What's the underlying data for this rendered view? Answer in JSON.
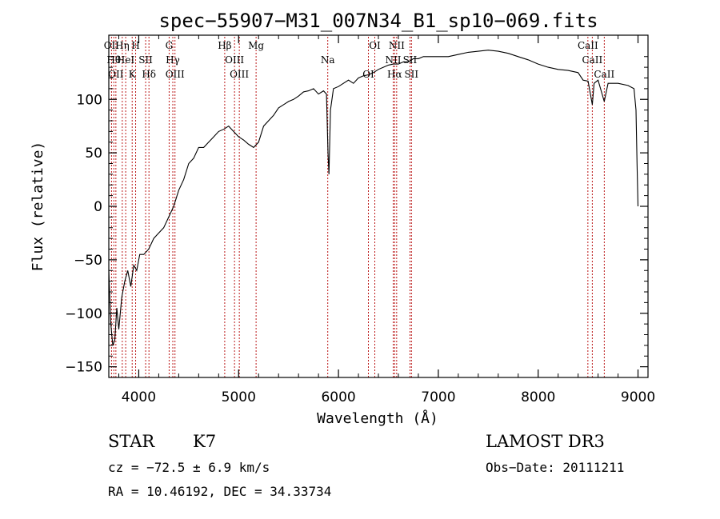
{
  "chart_data": {
    "type": "line",
    "title": "spec−55907−M31_007N34_B1_sp10−069.fits",
    "xlabel": "Wavelength (Å)",
    "ylabel": "Flux (relative)",
    "xlim": [
      3700,
      9100
    ],
    "ylim": [
      -160,
      160
    ],
    "xticks": [
      {
        "value": 4000,
        "label": "4000"
      },
      {
        "value": 5000,
        "label": "5000"
      },
      {
        "value": 6000,
        "label": "6000"
      },
      {
        "value": 7000,
        "label": "7000"
      },
      {
        "value": 8000,
        "label": "8000"
      },
      {
        "value": 9000,
        "label": "9000"
      }
    ],
    "yticks": [
      {
        "value": -150,
        "label": "−150"
      },
      {
        "value": -100,
        "label": "−100"
      },
      {
        "value": -50,
        "label": "−50"
      },
      {
        "value": 0,
        "label": "0"
      },
      {
        "value": 50,
        "label": "50"
      },
      {
        "value": 100,
        "label": "100"
      }
    ],
    "series": [
      {
        "name": "spectrum",
        "x": [
          3700,
          3720,
          3740,
          3760,
          3780,
          3800,
          3830,
          3860,
          3890,
          3920,
          3950,
          3980,
          4010,
          4050,
          4100,
          4150,
          4200,
          4250,
          4300,
          4350,
          4400,
          4450,
          4500,
          4550,
          4600,
          4650,
          4700,
          4750,
          4800,
          4850,
          4900,
          4950,
          5000,
          5050,
          5100,
          5150,
          5200,
          5250,
          5300,
          5350,
          5400,
          5450,
          5500,
          5550,
          5600,
          5650,
          5700,
          5750,
          5800,
          5850,
          5880,
          5895,
          5905,
          5920,
          5950,
          6000,
          6050,
          6100,
          6150,
          6200,
          6250,
          6300,
          6350,
          6400,
          6450,
          6500,
          6550,
          6600,
          6650,
          6700,
          6750,
          6800,
          6850,
          6900,
          6950,
          7000,
          7100,
          7200,
          7300,
          7400,
          7500,
          7600,
          7700,
          7800,
          7900,
          8000,
          8100,
          8200,
          8300,
          8400,
          8450,
          8500,
          8542,
          8560,
          8600,
          8662,
          8700,
          8800,
          8900,
          8960,
          8980,
          8990,
          9000
        ],
        "y": [
          -60,
          -110,
          -130,
          -125,
          -95,
          -115,
          -85,
          -70,
          -60,
          -75,
          -55,
          -60,
          -45,
          -45,
          -40,
          -30,
          -25,
          -20,
          -10,
          0,
          15,
          25,
          40,
          45,
          55,
          55,
          60,
          65,
          70,
          72,
          75,
          70,
          65,
          62,
          58,
          55,
          60,
          75,
          80,
          85,
          92,
          95,
          98,
          100,
          103,
          107,
          108,
          110,
          105,
          108,
          105,
          50,
          30,
          90,
          110,
          112,
          115,
          118,
          115,
          120,
          122,
          123,
          125,
          128,
          130,
          132,
          133,
          133,
          135,
          135,
          138,
          138,
          140,
          140,
          140,
          140,
          140,
          142,
          144,
          145,
          146,
          145,
          143,
          140,
          137,
          133,
          130,
          128,
          127,
          125,
          118,
          117,
          95,
          115,
          118,
          98,
          115,
          115,
          113,
          110,
          90,
          40,
          0
        ]
      }
    ],
    "lines": [
      {
        "wavelength": 3727,
        "label": "OII"
      },
      {
        "wavelength": 3750,
        "label": "Hθ"
      },
      {
        "wavelength": 3771,
        "label": "OII"
      },
      {
        "wavelength": 3835,
        "label": "Hη"
      },
      {
        "wavelength": 3869,
        "label": "HeI"
      },
      {
        "wavelength": 3934,
        "label": "K"
      },
      {
        "wavelength": 3969,
        "label": "H"
      },
      {
        "wavelength": 4069,
        "label": "SII"
      },
      {
        "wavelength": 4102,
        "label": "Hδ"
      },
      {
        "wavelength": 4304,
        "label": "G"
      },
      {
        "wavelength": 4341,
        "label": "Hγ"
      },
      {
        "wavelength": 4363,
        "label": "OIII"
      },
      {
        "wavelength": 4861,
        "label": "Hβ"
      },
      {
        "wavelength": 4959,
        "label": "OIII"
      },
      {
        "wavelength": 5007,
        "label": "OIII"
      },
      {
        "wavelength": 5175,
        "label": "Mg"
      },
      {
        "wavelength": 5893,
        "label": "Na"
      },
      {
        "wavelength": 6300,
        "label": "OI"
      },
      {
        "wavelength": 6364,
        "label": "OI"
      },
      {
        "wavelength": 6548,
        "label": "NII"
      },
      {
        "wavelength": 6563,
        "label": "Hα"
      },
      {
        "wavelength": 6583,
        "label": "NII"
      },
      {
        "wavelength": 6716,
        "label": "SII"
      },
      {
        "wavelength": 6731,
        "label": "SII"
      },
      {
        "wavelength": 8498,
        "label": "CaII"
      },
      {
        "wavelength": 8542,
        "label": "CaII"
      },
      {
        "wavelength": 8662,
        "label": "CaII"
      }
    ]
  },
  "info": {
    "object_class": "STAR",
    "subclass": "K7",
    "survey": "LAMOST DR3",
    "redshift_text": "cz = −72.5 ± 6.9 km/s",
    "obs_date_text": "Obs−Date: 20111211",
    "coords_text": "RA =  10.46192, DEC =  34.33734"
  },
  "colors": {
    "spectrum": "#000000",
    "line_marker": "#b40000",
    "axes": "#000000"
  }
}
